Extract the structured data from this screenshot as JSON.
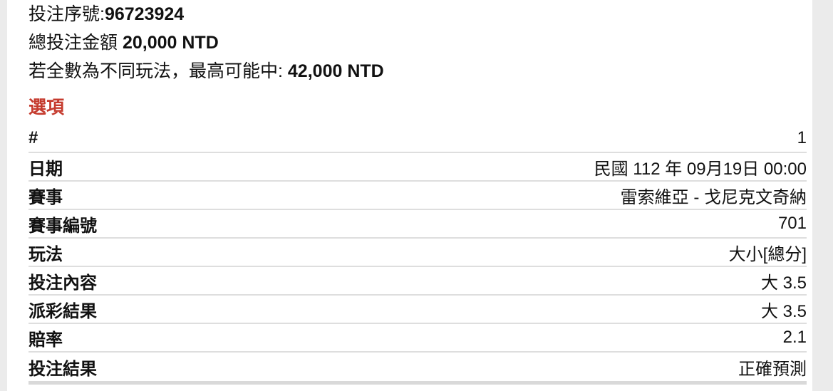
{
  "colors": {
    "page_bg": "#ebebeb",
    "content_bg": "#ffffff",
    "accent_red": "#c53b2e",
    "text": "#111111",
    "divider": "#dedede",
    "bottom_bar": "#d9d9d9"
  },
  "header": {
    "serial_label": "投注序號:",
    "serial_value": "96723924",
    "total_label": "總投注金額 ",
    "total_value": "20,000 NTD",
    "max_win_label": "若全數為不同玩法，最高可能中: ",
    "max_win_value": "42,000 NTD"
  },
  "section": {
    "title": "選項"
  },
  "table": {
    "rows": [
      {
        "label": "#",
        "value": "1"
      },
      {
        "label": "日期",
        "value": "民國 112 年 09月19日 00:00"
      },
      {
        "label": "賽事",
        "value": "雷索維亞 - 戈尼克文奇納"
      },
      {
        "label": "賽事編號",
        "value": "701"
      },
      {
        "label": "玩法",
        "value": "大小[總分]"
      },
      {
        "label": "投注內容",
        "value": "大 3.5"
      },
      {
        "label": "派彩結果",
        "value": "大 3.5"
      },
      {
        "label": "賠率",
        "value": "2.1"
      },
      {
        "label": "投注結果",
        "value": "正確預測"
      }
    ]
  }
}
